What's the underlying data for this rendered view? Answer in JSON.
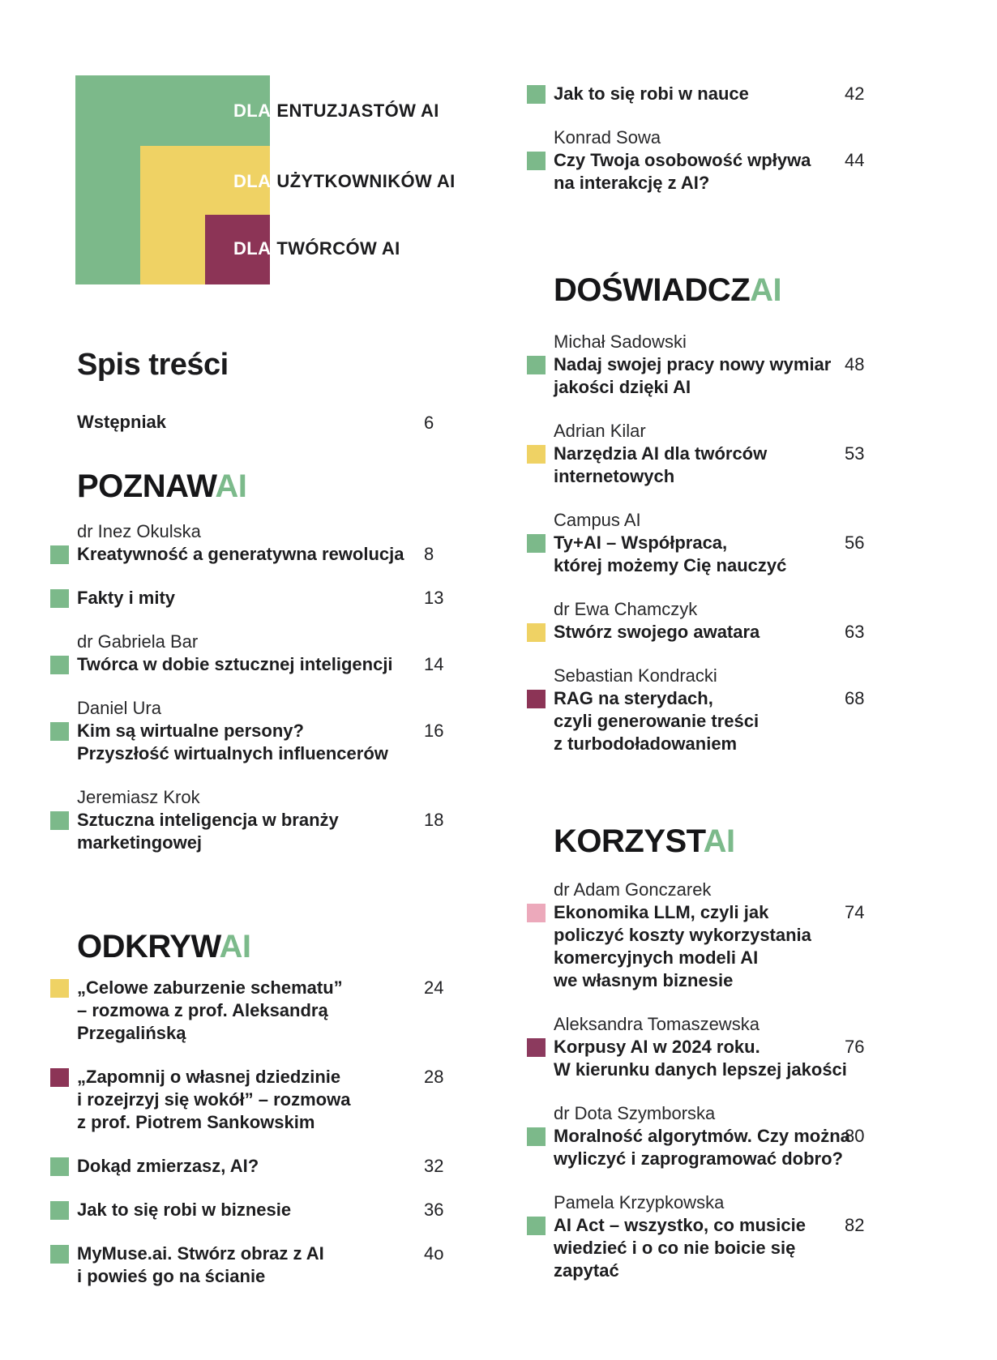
{
  "palette": {
    "green": "#7CB98A",
    "yellow": "#EFD264",
    "maroon": "#8C3456",
    "maroon_alt": "#8C3A5E",
    "pink": "#ECA9BB",
    "accent_text_green": "#7CBA8B",
    "text_dark": "#1D1D1F",
    "background": "#FFFFFF"
  },
  "legend": {
    "items": [
      {
        "dla": "DLA",
        "label": "ENTUZJASTÓW AI",
        "color": "#7CB98A"
      },
      {
        "dla": "DLA",
        "label": "UŻYTKOWNIKÓW AI",
        "color": "#EFD264"
      },
      {
        "dla": "DLA",
        "label": "TWÓRCÓW AI",
        "color": "#8C3456"
      }
    ]
  },
  "left": {
    "title": "Spis treści",
    "intro": {
      "label": "Wstępniak",
      "page": "6"
    },
    "section1": {
      "black": "POZNAW",
      "accent": "AI"
    },
    "s1_entries": [
      {
        "author": "dr Inez Okulska",
        "bullet": "#7CB98A",
        "title": "Kreatywność a generatywna rewolucja",
        "page": "8"
      },
      {
        "bullet": "#7CB98A",
        "title": "Fakty i mity",
        "page": "13"
      },
      {
        "author": "dr Gabriela Bar",
        "bullet": "#7CB98A",
        "title": "Twórca w dobie sztucznej inteligencji",
        "page": "14"
      },
      {
        "author": "Daniel Ura",
        "bullet": "#7CB98A",
        "title": "Kim są wirtualne persony?\nPrzyszłość wirtualnych influencerów",
        "page": "16"
      },
      {
        "author": "Jeremiasz Krok",
        "bullet": "#7CB98A",
        "title": "Sztuczna inteligencja w branży\nmarketingowej",
        "page": "18"
      }
    ],
    "section2": {
      "black": "ODKRYW",
      "accent": "AI"
    },
    "s2_entries": [
      {
        "bullet": "#EFD264",
        "title": "„Celowe zaburzenie schematu”\n– rozmowa z prof. Aleksandrą\nPrzegalińską",
        "page": "24"
      },
      {
        "bullet": "#8C3456",
        "title": "„Zapomnij o własnej dziedzinie\ni rozejrzyj się wokół” – rozmowa\nz prof. Piotrem Sankowskim",
        "page": "28"
      },
      {
        "bullet": "#7CB98A",
        "title": "Dokąd zmierzasz, AI?",
        "page": "32"
      },
      {
        "bullet": "#7CB98A",
        "title": "Jak to się robi w biznesie",
        "page": "36"
      },
      {
        "bullet": "#7CB98A",
        "title": "MyMuse.ai. Stwórz obraz z AI\ni powieś go na ścianie",
        "page": "4o"
      }
    ]
  },
  "right": {
    "cont_entries": [
      {
        "bullet": "#7CB98A",
        "title": "Jak to się robi w nauce",
        "page": "42"
      },
      {
        "author": "Konrad Sowa",
        "bullet": "#7CB98A",
        "title": "Czy Twoja osobowość wpływa\nna interakcję z AI?",
        "page": "44"
      }
    ],
    "section3": {
      "black": "DOŚWIADCZ",
      "accent": "AI"
    },
    "s3_entries": [
      {
        "author": "Michał Sadowski",
        "bullet": "#7CB98A",
        "title": "Nadaj swojej pracy nowy wymiar\njakości dzięki AI",
        "page": "48"
      },
      {
        "author": "Adrian Kilar",
        "bullet": "#EFD264",
        "title": "Narzędzia AI dla twórców\ninternetowych",
        "page": "53"
      },
      {
        "author": "Campus AI",
        "bullet": "#7CB98A",
        "title": "Ty+AI – Współpraca,\nktórej możemy Cię nauczyć",
        "page": "56"
      },
      {
        "author": "dr Ewa Chamczyk",
        "bullet": "#EFD264",
        "title": "Stwórz swojego awatara",
        "page": "63"
      },
      {
        "author": "Sebastian Kondracki",
        "bullet": "#8C3456",
        "title": "RAG na sterydach,\nczyli generowanie treści\nz turbodoładowaniem",
        "page": "68"
      }
    ],
    "section4": {
      "black": "KORZYST",
      "accent": "AI"
    },
    "s4_entries": [
      {
        "author": "dr Adam Gonczarek",
        "bullet": "#ECA9BB",
        "title": "Ekonomika LLM, czyli jak\npoliczyć koszty wykorzystania\nkomercyjnych modeli AI\nwe własnym biznesie",
        "page": "74"
      },
      {
        "author": "Aleksandra Tomaszewska",
        "bullet": "#8C3A5E",
        "title": "Korpusy AI w 2024 roku.\nW kierunku danych lepszej jakości",
        "page": "76"
      },
      {
        "author": "dr Dota Szymborska",
        "bullet": "#7CB98A",
        "title": "Moralność algorytmów. Czy można\nwyliczyć i zaprogramować dobro?",
        "page": "80"
      },
      {
        "author": "Pamela Krzypkowska",
        "bullet": "#7CB98A",
        "title": "AI Act – wszystko, co musicie\nwiedzieć i o co nie boicie się\nzapytać",
        "page": "82"
      }
    ]
  }
}
